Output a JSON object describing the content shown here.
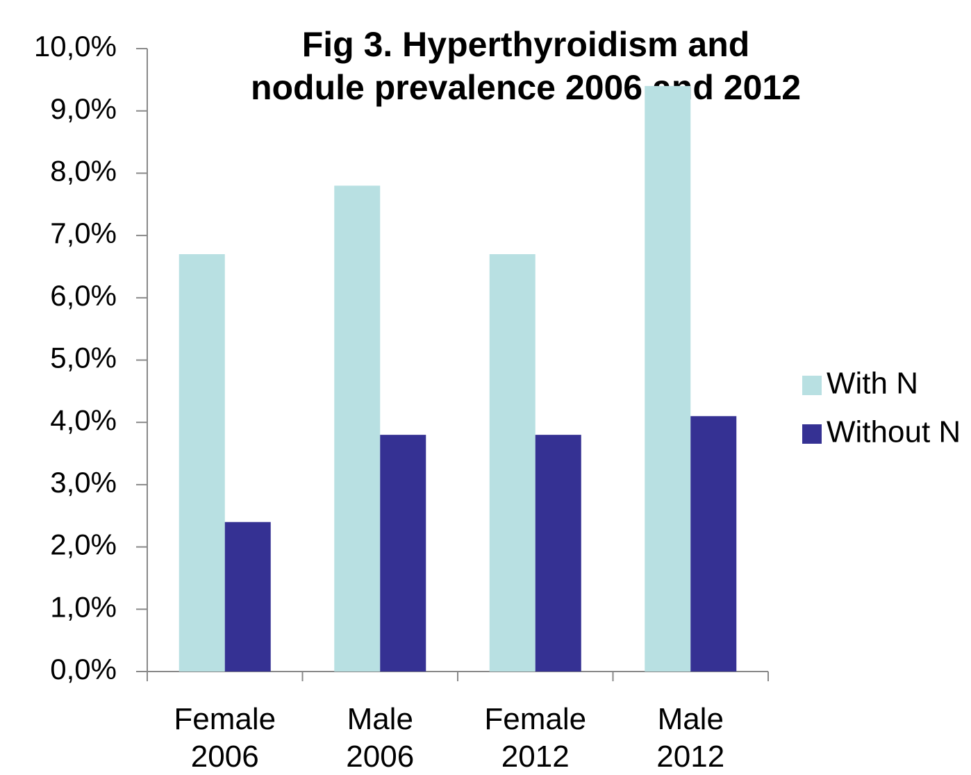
{
  "chart_data": {
    "type": "bar",
    "title": "Fig 3. Hyperthyroidism and\nnodule prevalence 2006 and 2012",
    "categories": [
      "Female\n2006",
      "Male\n2006",
      "Female\n2012",
      "Male\n2012"
    ],
    "series": [
      {
        "name": "With N",
        "color": "#b8e0e2",
        "values": [
          6.7,
          7.8,
          6.7,
          9.4
        ]
      },
      {
        "name": "Without N",
        "color": "#353193",
        "values": [
          2.4,
          3.8,
          3.8,
          4.1
        ]
      }
    ],
    "ylim": [
      0,
      10
    ],
    "yticks": [
      {
        "value": 0,
        "label": "0,0%"
      },
      {
        "value": 1,
        "label": "1,0%"
      },
      {
        "value": 2,
        "label": "2,0%"
      },
      {
        "value": 3,
        "label": "3,0%"
      },
      {
        "value": 4,
        "label": "4,0%"
      },
      {
        "value": 5,
        "label": "5,0%"
      },
      {
        "value": 6,
        "label": "6,0%"
      },
      {
        "value": 7,
        "label": "7,0%"
      },
      {
        "value": 8,
        "label": "8,0%"
      },
      {
        "value": 9,
        "label": "9,0%"
      },
      {
        "value": 10,
        "label": "10,0%"
      }
    ],
    "grid": false,
    "legend": "right"
  }
}
